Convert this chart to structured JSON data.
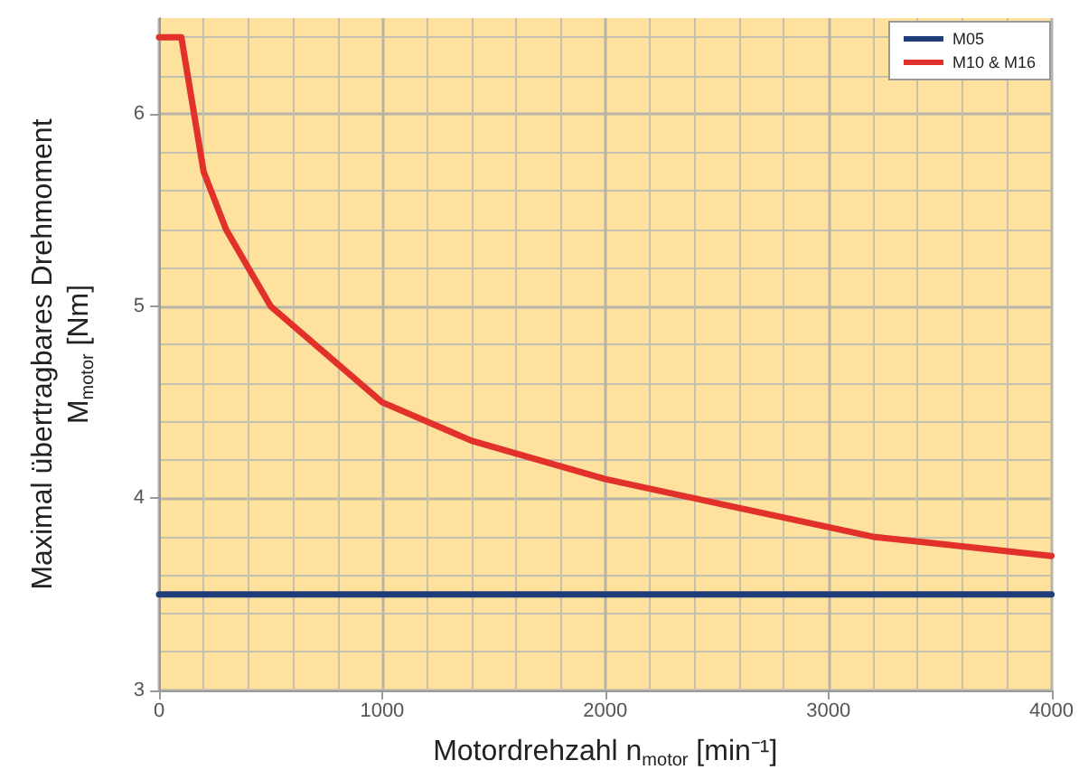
{
  "chart_data": {
    "type": "line",
    "xlabel": "Motordrehzahl n$_{motor}$ [min⁻¹]",
    "ylabel": "Maximal übertragbares Drehmoment\nM$_{motor}$ [Nm]",
    "xlim": [
      0,
      4000
    ],
    "xticks": [
      0,
      1000,
      2000,
      3000,
      4000
    ],
    "ylim": [
      3,
      6.5
    ],
    "yticks": [
      3,
      4,
      5,
      6
    ],
    "grid": true,
    "legend": "top right",
    "marker": "none",
    "line_style": "solid",
    "series": [
      {
        "name": "M05",
        "color": "#1f3d7a",
        "x": [
          0,
          4000
        ],
        "values": [
          3.5,
          3.5
        ]
      },
      {
        "name": "M10 & M16",
        "color": "#e2312a",
        "x": [
          0,
          100,
          200,
          300,
          500,
          1000,
          1400,
          2000,
          2600,
          3200,
          4000
        ],
        "values": [
          6.4,
          6.4,
          5.7,
          5.4,
          5.0,
          4.5,
          4.3,
          4.1,
          3.95,
          3.8,
          3.7
        ]
      }
    ]
  }
}
